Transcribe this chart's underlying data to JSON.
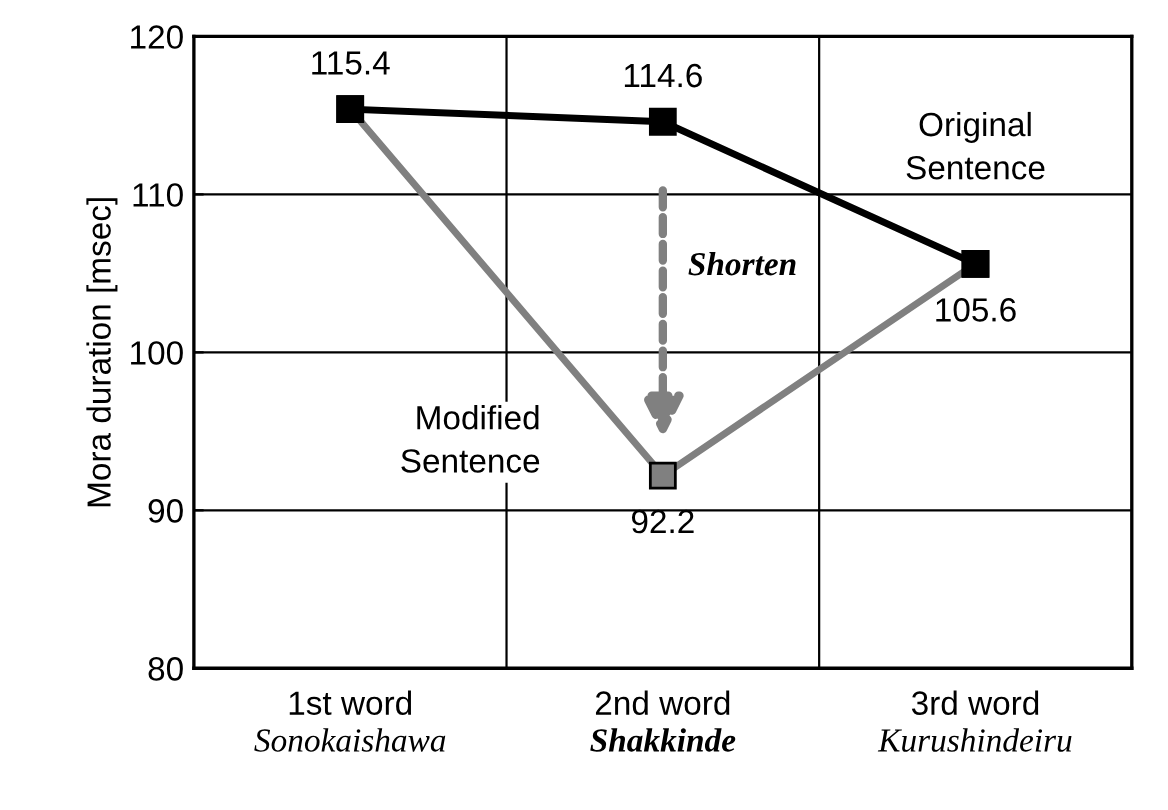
{
  "chart_data": {
    "type": "line",
    "ylabel": "Mora duration [msec]",
    "categories": [
      "1st word\nSonokaishawa",
      "2nd word\nShakkinde",
      "3rd word\nKurushindeiru"
    ],
    "series": [
      {
        "name": "Original\nSentence",
        "color": "#000000",
        "values": [
          115.4,
          114.6,
          105.6
        ],
        "value_labels": [
          "115.4",
          "114.6",
          "105.6"
        ]
      },
      {
        "name": "Modified\nSentence",
        "color": "#808080",
        "values": [
          115.4,
          92.2,
          105.6
        ],
        "value_labels": [
          null,
          "92.2",
          null
        ]
      }
    ],
    "annotations": [
      "Shorten"
    ],
    "ylim": [
      80,
      120
    ],
    "yticks": [
      80,
      90,
      100,
      110,
      120
    ],
    "grid": true,
    "marker": "square",
    "line_style": "solid",
    "legend": false
  }
}
